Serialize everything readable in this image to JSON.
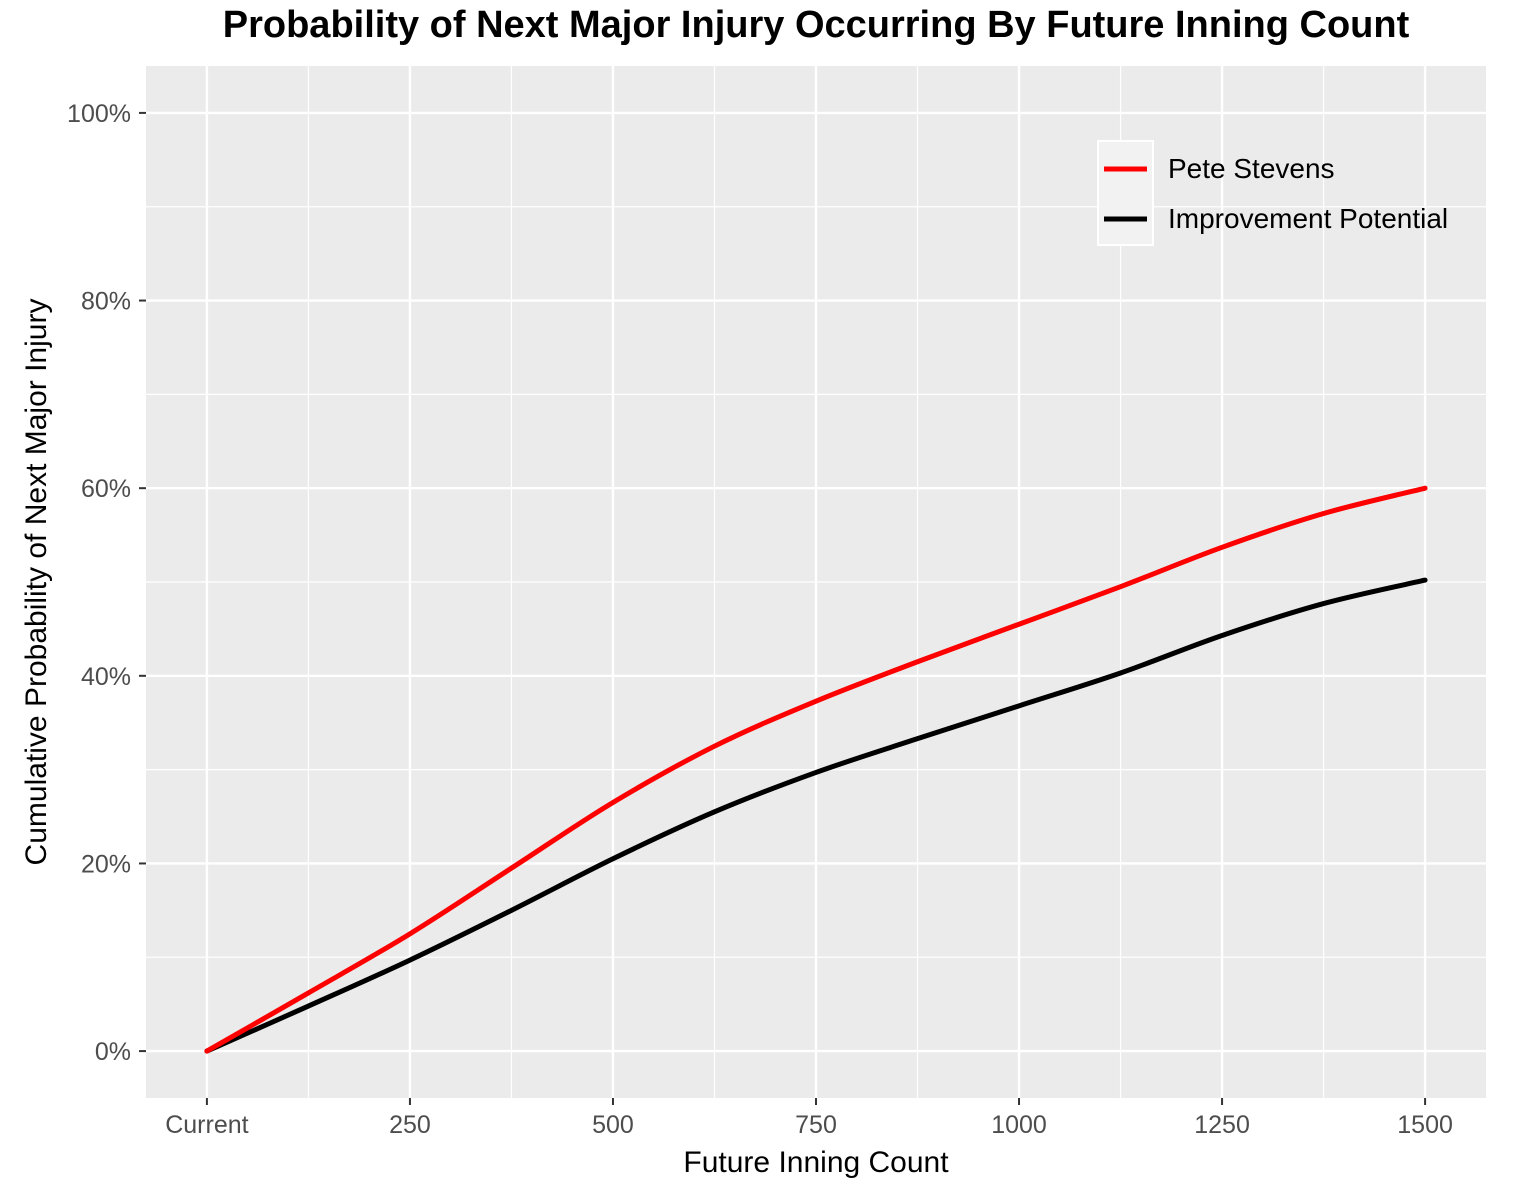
{
  "chart_data": {
    "type": "line",
    "title": "Probability of Next Major Injury Occurring By Future Inning Count",
    "xlabel": "Future Inning Count",
    "ylabel": "Cumulative Probability of Next Major Injury",
    "xlim": [
      -75,
      1575
    ],
    "ylim": [
      -0.05,
      1.05
    ],
    "x_ticks": [
      0,
      250,
      500,
      750,
      1000,
      1250,
      1500
    ],
    "x_tick_labels": [
      "Current",
      "250",
      "500",
      "750",
      "1000",
      "1250",
      "1500"
    ],
    "y_ticks": [
      0,
      0.2,
      0.4,
      0.6,
      0.8,
      1.0
    ],
    "y_tick_labels": [
      "0%",
      "20%",
      "40%",
      "60%",
      "80%",
      "100%"
    ],
    "grid": true,
    "legend_position": "top-right",
    "series": [
      {
        "name": "Pete Stevens",
        "color": "#ff0000",
        "x": [
          0,
          125,
          250,
          375,
          500,
          625,
          750,
          875,
          1000,
          1125,
          1250,
          1375,
          1500
        ],
        "y": [
          0.0,
          0.062,
          0.125,
          0.195,
          0.265,
          0.325,
          0.373,
          0.415,
          0.455,
          0.495,
          0.537,
          0.573,
          0.6
        ]
      },
      {
        "name": "Improvement Potential",
        "color": "#000000",
        "x": [
          0,
          125,
          250,
          375,
          500,
          625,
          750,
          875,
          1000,
          1125,
          1250,
          1375,
          1500
        ],
        "y": [
          0.0,
          0.048,
          0.097,
          0.15,
          0.205,
          0.255,
          0.297,
          0.333,
          0.368,
          0.403,
          0.443,
          0.477,
          0.502
        ]
      }
    ]
  }
}
